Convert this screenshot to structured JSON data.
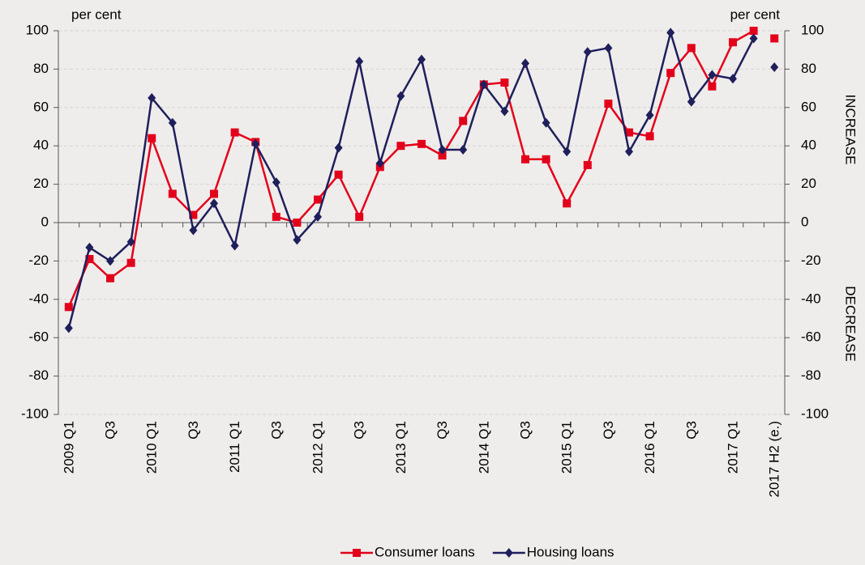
{
  "chart_data": {
    "type": "line",
    "y_label": "per cent",
    "y2_label": "per cent",
    "annotations": [
      "INCREASE",
      "DECREASE"
    ],
    "categories": [
      "2009 Q1",
      null,
      "Q3",
      null,
      "2010 Q1",
      null,
      "Q3",
      null,
      "2011 Q1",
      null,
      "Q3",
      null,
      "2012 Q1",
      null,
      "Q3",
      null,
      "2013 Q1",
      null,
      "Q3",
      null,
      "2014 Q1",
      null,
      "Q3",
      null,
      "2015 Q1",
      null,
      "Q3",
      null,
      "2016 Q1",
      null,
      "Q3",
      null,
      "2017 Q1",
      null,
      "2017 H2 (e.)"
    ],
    "series": [
      {
        "name": "Consumer loans",
        "color": "#e3001b",
        "marker": "square",
        "values": [
          -44,
          -19,
          -29,
          -21,
          44,
          15,
          4,
          15,
          47,
          42,
          3,
          0,
          12,
          25,
          3,
          29,
          40,
          41,
          35,
          53,
          72,
          73,
          33,
          33,
          10,
          30,
          62,
          47,
          45,
          78,
          91,
          71,
          94,
          100,
          96
        ]
      },
      {
        "name": "Housing loans",
        "color": "#1f1f5c",
        "marker": "diamond",
        "values": [
          -55,
          -13,
          -20,
          -10,
          65,
          52,
          -4,
          10,
          -12,
          41,
          21,
          -9,
          3,
          39,
          84,
          31,
          66,
          85,
          38,
          38,
          72,
          58,
          83,
          52,
          37,
          89,
          91,
          37,
          56,
          99,
          63,
          77,
          75,
          96,
          81
        ]
      }
    ],
    "ylim": [
      -100,
      100
    ],
    "yticks": [
      -100,
      -80,
      -60,
      -40,
      -20,
      0,
      20,
      40,
      60,
      80,
      100
    ],
    "y2lim": [
      -100,
      100
    ],
    "y2ticks": [
      -100,
      -80,
      -60,
      -40,
      -20,
      0,
      20,
      40,
      60,
      80,
      100
    ],
    "grid": true,
    "legend": "bottom"
  }
}
